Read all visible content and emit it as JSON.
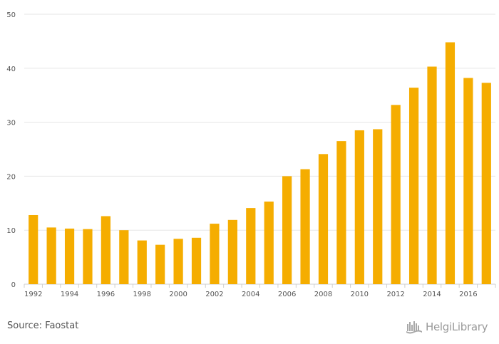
{
  "chart_data": {
    "type": "bar",
    "x_tick_labels": [
      "1992",
      "1994",
      "1996",
      "1998",
      "2000",
      "2002",
      "2004",
      "2006",
      "2008",
      "2010",
      "2012",
      "2014",
      "2016"
    ],
    "categories": [
      "1992",
      "1993",
      "1994",
      "1995",
      "1996",
      "1997",
      "1998",
      "1999",
      "2000",
      "2001",
      "2002",
      "2003",
      "2004",
      "2005",
      "2006",
      "2007",
      "2008",
      "2009",
      "2010",
      "2011",
      "2012",
      "2013",
      "2014",
      "2015",
      "2016",
      "2017"
    ],
    "values": [
      12.8,
      10.5,
      10.3,
      10.2,
      12.6,
      10.0,
      8.1,
      7.3,
      8.4,
      8.6,
      11.2,
      11.9,
      14.1,
      15.3,
      20.0,
      21.3,
      24.1,
      26.5,
      28.5,
      28.7,
      33.2,
      36.4,
      40.3,
      44.8,
      38.2,
      37.3
    ],
    "ylim": [
      0,
      50
    ],
    "y_ticks": [
      0,
      10,
      20,
      30,
      40,
      50
    ],
    "grid": true,
    "bar_color": "#f5ad00",
    "grid_color": "#e6e6e6",
    "axis_color": "#cfcfcf",
    "label_color": "#555555"
  },
  "source_text": "Source: Faostat",
  "brand": {
    "text": "HelgiLibrary",
    "logo_icon": "helgi-library-logo-icon"
  }
}
